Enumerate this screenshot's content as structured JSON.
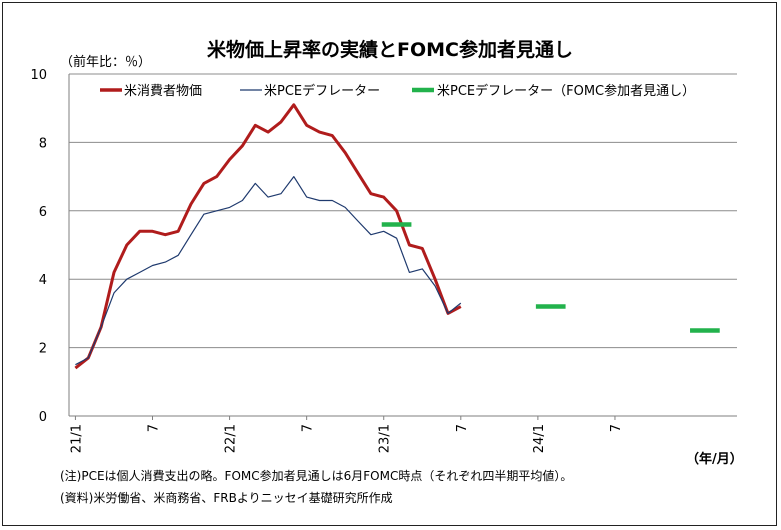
{
  "chart_data": {
    "type": "line",
    "title": "米物価上昇率の実績とFOMC参加者見通し",
    "ylabel": "（前年比：％）",
    "xunit": "（年/月）",
    "ylim": [
      0,
      10
    ],
    "yticks": [
      "0",
      "2",
      "4",
      "6",
      "8",
      "10"
    ],
    "xticks": [
      "21/1",
      "7",
      "22/1",
      "7",
      "23/1",
      "7",
      "24/1",
      "7"
    ],
    "grid": true,
    "legend_position": "top",
    "series": [
      {
        "name": "米消費者物価",
        "color": "#b01c1c",
        "values": [
          1.4,
          1.7,
          2.6,
          4.2,
          5.0,
          5.4,
          5.4,
          5.3,
          5.4,
          6.2,
          6.8,
          7.0,
          7.5,
          7.9,
          8.5,
          8.3,
          8.6,
          9.1,
          8.5,
          8.3,
          8.2,
          7.7,
          7.1,
          6.5,
          6.4,
          6.0,
          5.0,
          4.9,
          4.0,
          3.0,
          3.2
        ]
      },
      {
        "name": "米PCEデフレーター",
        "color": "#1f3a6e",
        "values": [
          1.5,
          1.7,
          2.6,
          3.6,
          4.0,
          4.2,
          4.4,
          4.5,
          4.7,
          5.3,
          5.9,
          6.0,
          6.1,
          6.3,
          6.8,
          6.4,
          6.5,
          7.0,
          6.4,
          6.3,
          6.3,
          6.1,
          5.7,
          5.3,
          5.4,
          5.2,
          4.2,
          4.3,
          3.8,
          3.0,
          3.3
        ]
      }
    ],
    "projection": {
      "name": "米PCEデフレーター（FOMC参加者見通し）",
      "color": "#22b24c",
      "segments": [
        {
          "x_start": 24,
          "x_end": 26,
          "value": 5.6
        },
        {
          "x_start": 36,
          "x_end": 38,
          "value": 3.2
        },
        {
          "x_start": 48,
          "x_end": 50,
          "value": 2.5
        }
      ]
    }
  },
  "notes": {
    "note1": "(注)PCEは個人消費支出の略。FOMC参加者見通しは6月FOMC時点（それぞれ四半期平均値）。",
    "note2": "(資料)米労働省、米商務省、FRBよりニッセイ基礎研究所作成"
  }
}
